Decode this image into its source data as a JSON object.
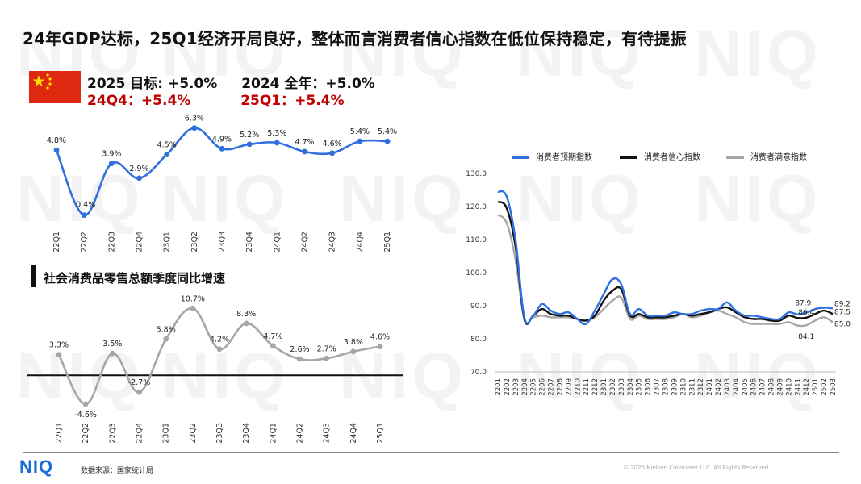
{
  "title": "24年GDP达标，25Q1经济开局良好，整体而言消费者信心指数在低位保持稳定，有待提振",
  "targets": {
    "target_2025": "2025 目标: +5.0%",
    "full_2024": "2024 全年：+5.0%",
    "q4_2024": "24Q4：+5.4%",
    "q1_2025": "25Q1：+5.4%"
  },
  "retail_section_title": "社会消费品零售总额季度同比增速",
  "source": "数据来源：国家统计局",
  "copyright": "© 2025 Nielsen Consumer LLC. All Rights Reserved.",
  "logo": "NIQ",
  "watermark": "NIQ",
  "colors": {
    "blue": "#2f6fde",
    "black": "#111111",
    "gray": "#a6a6a6",
    "red": "#c00000",
    "flag": "#de2910",
    "star": "#ffde00"
  },
  "chart_data": [
    {
      "type": "line",
      "categories": [
        "22Q1",
        "22Q2",
        "22Q3",
        "22Q4",
        "23Q1",
        "23Q2",
        "23Q3",
        "23Q4",
        "24Q1",
        "24Q2",
        "24Q3",
        "24Q4",
        "25Q1"
      ],
      "values": [
        4.8,
        0.4,
        3.9,
        2.9,
        4.5,
        6.3,
        4.9,
        5.2,
        5.3,
        4.7,
        4.6,
        5.4,
        5.4
      ],
      "labels": [
        "4.8%",
        "0.4%",
        "3.9%",
        "2.9%",
        "4.5%",
        "6.3%",
        "4.9%",
        "5.2%",
        "5.3%",
        "4.7%",
        "4.6%",
        "5.4%",
        "5.4%"
      ],
      "ylim": [
        0,
        6.5
      ],
      "color": "#2f6fde",
      "grid": false,
      "smooth": true
    },
    {
      "type": "line",
      "title": "社会消费品零售总额季度同比增速",
      "categories": [
        "22Q1",
        "22Q2",
        "22Q3",
        "22Q4",
        "23Q1",
        "23Q2",
        "23Q3",
        "23Q4",
        "24Q1",
        "24Q2",
        "24Q3",
        "24Q4",
        "25Q1"
      ],
      "values": [
        3.3,
        -4.6,
        3.5,
        -2.7,
        5.8,
        10.7,
        4.2,
        8.3,
        4.7,
        2.6,
        2.7,
        3.8,
        4.6
      ],
      "labels": [
        "3.3%",
        "-4.6%",
        "3.5%",
        "-2.7%",
        "5.8%",
        "10.7%",
        "4.2%",
        "8.3%",
        "4.7%",
        "2.6%",
        "2.7%",
        "3.8%",
        "4.6%"
      ],
      "ylim": [
        -5,
        11
      ],
      "zero_line": true,
      "color": "#a6a6a6",
      "grid": false,
      "smooth": true
    },
    {
      "type": "line",
      "x": [
        "2201",
        "2202",
        "2203",
        "2204",
        "2205",
        "2206",
        "2207",
        "2208",
        "2209",
        "2210",
        "2211",
        "2212",
        "2301",
        "2302",
        "2303",
        "2304",
        "2305",
        "2306",
        "2307",
        "2308",
        "2309",
        "2310",
        "2311",
        "2312",
        "2401",
        "2402",
        "2403",
        "2404",
        "2405",
        "2406",
        "2407",
        "2408",
        "2409",
        "2410",
        "2411",
        "2412",
        "2501",
        "2502",
        "2503"
      ],
      "ylim": [
        70,
        130
      ],
      "yticks": [
        "70.0",
        "80.0",
        "90.0",
        "100.0",
        "110.0",
        "120.0",
        "130.0"
      ],
      "legend_position": "top",
      "grid": false,
      "series": [
        {
          "name": "消费者预期指数",
          "color": "#2f6fde",
          "values": [
            124.5,
            123.0,
            110.0,
            86.5,
            87.0,
            90.5,
            88.5,
            87.5,
            88.0,
            86.0,
            84.5,
            88.5,
            93.5,
            98.0,
            96.5,
            87.5,
            89.0,
            87.0,
            87.0,
            87.0,
            88.0,
            87.5,
            87.5,
            88.5,
            89.0,
            89.0,
            91.0,
            88.5,
            87.0,
            87.0,
            86.5,
            86.0,
            86.0,
            88.0,
            87.4,
            87.9,
            89.0,
            89.4,
            89.2
          ],
          "labels": {
            "35": "87.9",
            "38": "89.2"
          }
        },
        {
          "name": "消费者信心指数",
          "color": "#111111",
          "values": [
            121.5,
            119.5,
            108.0,
            86.0,
            87.0,
            89.0,
            87.5,
            87.0,
            87.0,
            86.0,
            85.5,
            87.0,
            91.5,
            94.5,
            95.0,
            87.0,
            87.5,
            86.5,
            86.5,
            86.5,
            87.0,
            87.5,
            87.0,
            87.5,
            88.0,
            89.0,
            89.5,
            88.0,
            86.5,
            86.0,
            86.0,
            85.5,
            85.5,
            87.0,
            86.3,
            86.4,
            87.5,
            88.5,
            87.5
          ],
          "labels": {
            "35": "86.4",
            "38": "87.5"
          }
        },
        {
          "name": "消费者满意指数",
          "color": "#a6a6a6",
          "values": [
            117.5,
            115.0,
            104.0,
            86.0,
            86.5,
            87.0,
            86.5,
            86.5,
            86.5,
            86.0,
            85.5,
            86.5,
            89.0,
            91.5,
            92.5,
            86.0,
            87.0,
            86.0,
            86.0,
            86.0,
            86.5,
            87.5,
            86.5,
            87.0,
            88.0,
            88.5,
            87.5,
            86.5,
            85.0,
            84.5,
            84.5,
            84.5,
            84.5,
            85.0,
            84.0,
            84.1,
            85.5,
            86.5,
            85.0
          ],
          "labels": {
            "35": "84.1",
            "38": "85.0"
          }
        }
      ]
    }
  ]
}
